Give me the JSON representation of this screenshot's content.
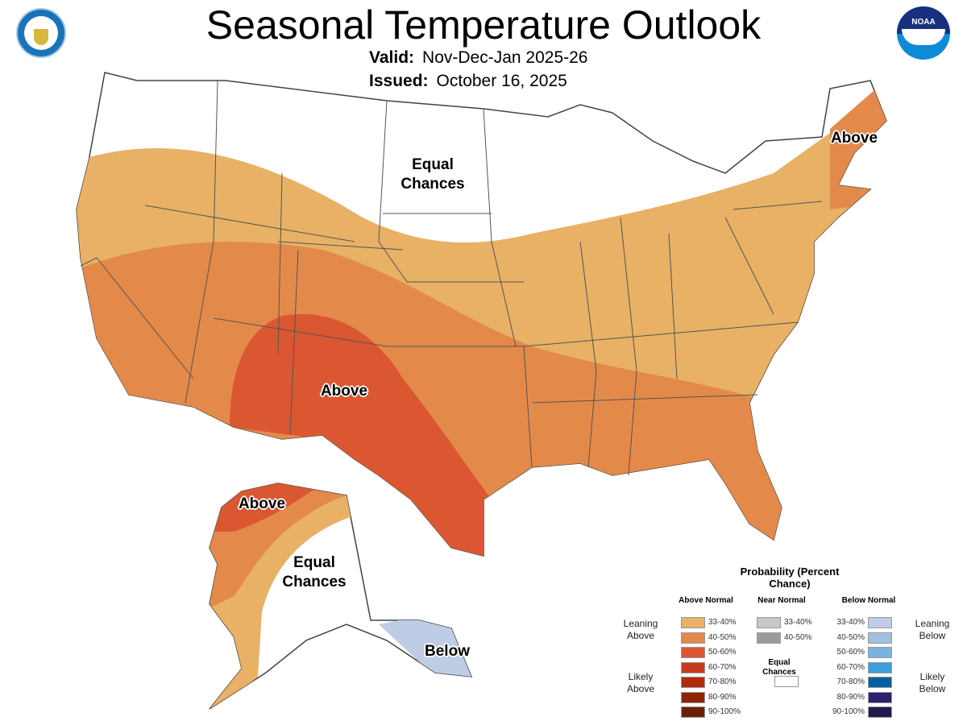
{
  "header": {
    "title": "Seasonal Temperature Outlook",
    "valid_label": "Valid:",
    "valid_value": "Nov-Dec-Jan 2025-26",
    "issued_label": "Issued:",
    "issued_value": "October 16, 2025",
    "left_logo": "department-of-commerce-seal",
    "right_logo": "noaa-logo",
    "noaa_text": "NOAA"
  },
  "map_labels": {
    "conus_north": "Equal Chances",
    "conus_southwest": "Above",
    "conus_northeast": "Above",
    "alaska_north": "Above",
    "alaska_interior": "Equal Chances",
    "alaska_southeast": "Below"
  },
  "legend": {
    "title": "Probability (Percent Chance)",
    "above_header": "Above Normal",
    "near_header": "Near Normal",
    "below_header": "Below Normal",
    "leaning_above": "Leaning Above",
    "likely_above": "Likely Above",
    "leaning_below": "Leaning Below",
    "likely_below": "Likely Below",
    "equal_chances": "Equal Chances",
    "above": [
      {
        "range": "33-40%",
        "color": "#E8B166"
      },
      {
        "range": "40-50%",
        "color": "#E38A4B"
      },
      {
        "range": "50-60%",
        "color": "#DB5731"
      },
      {
        "range": "60-70%",
        "color": "#C9391E"
      },
      {
        "range": "70-80%",
        "color": "#B22B0A"
      },
      {
        "range": "80-90%",
        "color": "#902302"
      },
      {
        "range": "90-100%",
        "color": "#6C1F05"
      }
    ],
    "near": [
      {
        "range": "33-40%",
        "color": "#C8C8C8"
      },
      {
        "range": "40-50%",
        "color": "#9B9B9B"
      }
    ],
    "below": [
      {
        "range": "33-40%",
        "color": "#BFCCE5"
      },
      {
        "range": "40-50%",
        "color": "#A2C0DF"
      },
      {
        "range": "50-60%",
        "color": "#79B4E0"
      },
      {
        "range": "60-70%",
        "color": "#3A9FDF"
      },
      {
        "range": "70-80%",
        "color": "#005FA3"
      },
      {
        "range": "80-90%",
        "color": "#2B216E"
      },
      {
        "range": "90-100%",
        "color": "#211A4E"
      }
    ]
  }
}
